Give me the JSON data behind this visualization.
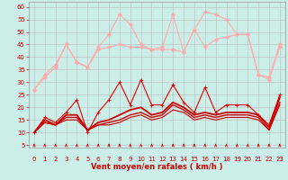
{
  "background_color": "#cceee8",
  "grid_color": "#bbbbbb",
  "xlabel": "Vent moyen/en rafales ( km/h )",
  "xlabel_color": "#cc0000",
  "xlabel_fontsize": 6,
  "yticks": [
    5,
    10,
    15,
    20,
    25,
    30,
    35,
    40,
    45,
    50,
    55,
    60
  ],
  "xticks": [
    0,
    1,
    2,
    3,
    4,
    5,
    6,
    7,
    8,
    9,
    10,
    11,
    12,
    13,
    14,
    15,
    16,
    17,
    18,
    19,
    20,
    21,
    22,
    23
  ],
  "xlim": [
    -0.5,
    23.5
  ],
  "ylim": [
    4,
    62
  ],
  "series": [
    {
      "x": [
        0,
        1,
        2,
        3,
        4,
        5,
        6,
        7,
        8,
        9,
        10,
        11,
        12,
        13,
        14,
        15,
        16,
        17,
        18,
        19,
        20,
        21,
        22,
        23
      ],
      "y": [
        10,
        16,
        14,
        18,
        23,
        10,
        18,
        23,
        30,
        21,
        31,
        21,
        21,
        29,
        22,
        18,
        28,
        18,
        21,
        21,
        21,
        17,
        13,
        25
      ],
      "color": "#dd0000",
      "lw": 0.8,
      "marker": "+"
    },
    {
      "x": [
        0,
        1,
        2,
        3,
        4,
        5,
        6,
        7,
        8,
        9,
        10,
        11,
        12,
        13,
        14,
        15,
        16,
        17,
        18,
        19,
        20,
        21,
        22,
        23
      ],
      "y": [
        10,
        15,
        13,
        17,
        17,
        11,
        14,
        15,
        17,
        19,
        20,
        17,
        18,
        22,
        20,
        17,
        18,
        17,
        18,
        18,
        18,
        17,
        12,
        24
      ],
      "color": "#cc0000",
      "lw": 1.3,
      "marker": null
    },
    {
      "x": [
        0,
        1,
        2,
        3,
        4,
        5,
        6,
        7,
        8,
        9,
        10,
        11,
        12,
        13,
        14,
        15,
        16,
        17,
        18,
        19,
        20,
        21,
        22,
        23
      ],
      "y": [
        10,
        14,
        13,
        16,
        16,
        11,
        13,
        14,
        15,
        17,
        18,
        16,
        17,
        21,
        19,
        16,
        17,
        16,
        17,
        17,
        17,
        16,
        11,
        22
      ],
      "color": "#cc0000",
      "lw": 1.0,
      "marker": null
    },
    {
      "x": [
        0,
        1,
        2,
        3,
        4,
        5,
        6,
        7,
        8,
        9,
        10,
        11,
        12,
        13,
        14,
        15,
        16,
        17,
        18,
        19,
        20,
        21,
        22,
        23
      ],
      "y": [
        10,
        14,
        13,
        15,
        15,
        11,
        13,
        13,
        14,
        16,
        17,
        15,
        16,
        19,
        18,
        15,
        16,
        15,
        16,
        16,
        16,
        15,
        11,
        21
      ],
      "color": "#cc0000",
      "lw": 0.8,
      "marker": null
    },
    {
      "x": [
        0,
        1,
        2,
        3,
        4,
        5,
        6,
        7,
        8,
        9,
        10,
        11,
        12,
        13,
        14,
        15,
        16,
        17,
        18,
        19,
        20,
        21,
        22,
        23
      ],
      "y": [
        27,
        33,
        37,
        45,
        38,
        36,
        43,
        44,
        45,
        44,
        44,
        43,
        43,
        43,
        42,
        51,
        44,
        47,
        48,
        49,
        49,
        33,
        32,
        45
      ],
      "color": "#ffaaaa",
      "lw": 0.8,
      "marker": "D"
    },
    {
      "x": [
        0,
        1,
        2,
        3,
        4,
        5,
        6,
        7,
        8,
        9,
        10,
        11,
        12,
        13,
        14,
        15,
        16,
        17,
        18,
        19,
        20,
        21,
        22,
        23
      ],
      "y": [
        27,
        32,
        36,
        45,
        38,
        36,
        44,
        49,
        57,
        53,
        45,
        43,
        44,
        57,
        42,
        51,
        58,
        57,
        55,
        49,
        49,
        33,
        31,
        44
      ],
      "color": "#ffaaaa",
      "lw": 0.8,
      "marker": "D"
    }
  ],
  "arrow_color": "#cc0000",
  "tick_color": "#cc0000",
  "tick_fontsize": 5,
  "ytick_fontsize": 5
}
